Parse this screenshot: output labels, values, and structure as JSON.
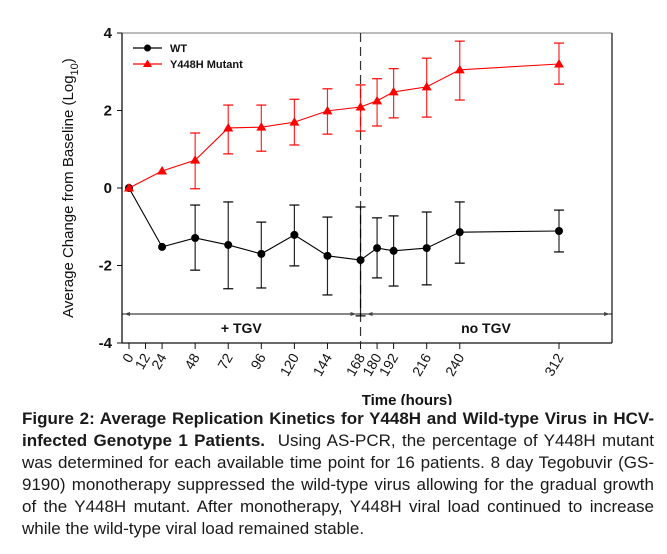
{
  "chart_data": {
    "type": "line",
    "title": "",
    "xlabel": "Time (hours)",
    "ylabel": "Average Change from Baseline (Log",
    "ylabel_subscript": "10",
    "ylabel_suffix": ")",
    "ylim": [
      -4,
      4
    ],
    "yticks": [
      4,
      2,
      0,
      -2,
      -4
    ],
    "ytick_labels": [
      "4",
      "2",
      "0",
      "-2",
      "-4"
    ],
    "xlim": [
      -5,
      350
    ],
    "xticks": [
      0,
      12,
      24,
      48,
      72,
      96,
      120,
      144,
      168,
      180,
      192,
      216,
      240,
      312
    ],
    "xtick_labels": [
      "0",
      "12",
      "24",
      "48",
      "72",
      "96",
      "120",
      "144",
      "168",
      "180",
      "192",
      "216",
      "240",
      "312"
    ],
    "grid": false,
    "legend_position": "top-left",
    "vline": {
      "x": 168,
      "style": "dashed"
    },
    "phases": [
      {
        "label": "+ TGV",
        "from": -5,
        "to": 168
      },
      {
        "label": "no TGV",
        "from": 168,
        "to": 350
      }
    ],
    "phase_arrow_y": -3.25,
    "series": [
      {
        "name": "WT",
        "color": "#000000",
        "marker": "circle",
        "x": [
          0,
          24,
          48,
          72,
          96,
          120,
          144,
          168,
          180,
          192,
          216,
          240,
          312
        ],
        "values": [
          0,
          -1.52,
          -1.29,
          -1.47,
          -1.7,
          -1.21,
          -1.75,
          -1.86,
          -1.55,
          -1.62,
          -1.55,
          -1.14,
          -1.11
        ],
        "err_upper": [
          null,
          null,
          -0.44,
          -0.36,
          -0.88,
          -0.44,
          -0.75,
          -0.49,
          -0.77,
          -0.72,
          -0.62,
          -0.36,
          -0.57
        ],
        "err_lower": [
          null,
          null,
          -2.12,
          -2.6,
          -2.58,
          -2.01,
          -2.76,
          -3.3,
          -2.32,
          -2.53,
          -2.5,
          -1.94,
          -1.65
        ]
      },
      {
        "name": "Y448H Mutant",
        "color": "#ff0000",
        "marker": "triangle",
        "x": [
          0,
          24,
          48,
          72,
          96,
          120,
          144,
          168,
          180,
          192,
          216,
          240,
          312
        ],
        "values": [
          0,
          0.44,
          0.72,
          1.55,
          1.57,
          1.7,
          1.99,
          2.09,
          2.25,
          2.48,
          2.61,
          3.05,
          3.2
        ],
        "err_upper": [
          null,
          null,
          1.42,
          2.14,
          2.14,
          2.29,
          2.56,
          2.66,
          2.82,
          3.08,
          3.35,
          3.79,
          3.74
        ],
        "err_lower": [
          null,
          null,
          -0.02,
          0.88,
          0.95,
          1.11,
          1.39,
          1.47,
          1.6,
          1.81,
          1.83,
          2.27,
          2.68
        ]
      }
    ]
  },
  "caption": {
    "bold": "Figure 2: Average Replication Kinetics for Y448H and Wild-type Virus in HCV-infected Genotype 1 Patients.",
    "text": "Using AS-PCR, the percentage of Y448H mutant was determined for each available time point for 16 patients. 8 day Tegobuvir (GS-9190) monotherapy suppressed the wild-type virus allowing for the gradual growth of the Y448H mutant. After monotherapy, Y448H viral load continued to increase while the wild-type viral load remained stable."
  }
}
